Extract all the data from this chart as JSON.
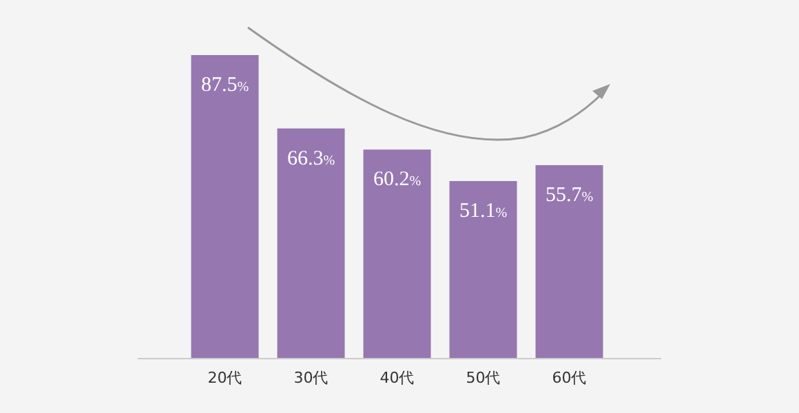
{
  "chart_data": {
    "type": "bar",
    "categories": [
      "20代",
      "30代",
      "40代",
      "50代",
      "60代"
    ],
    "values": [
      87.5,
      66.3,
      60.2,
      51.1,
      55.7
    ],
    "value_labels": [
      "87.5%",
      "66.3%",
      "60.2%",
      "51.1%",
      "55.7%"
    ],
    "color": "#9677b0"
  }
}
